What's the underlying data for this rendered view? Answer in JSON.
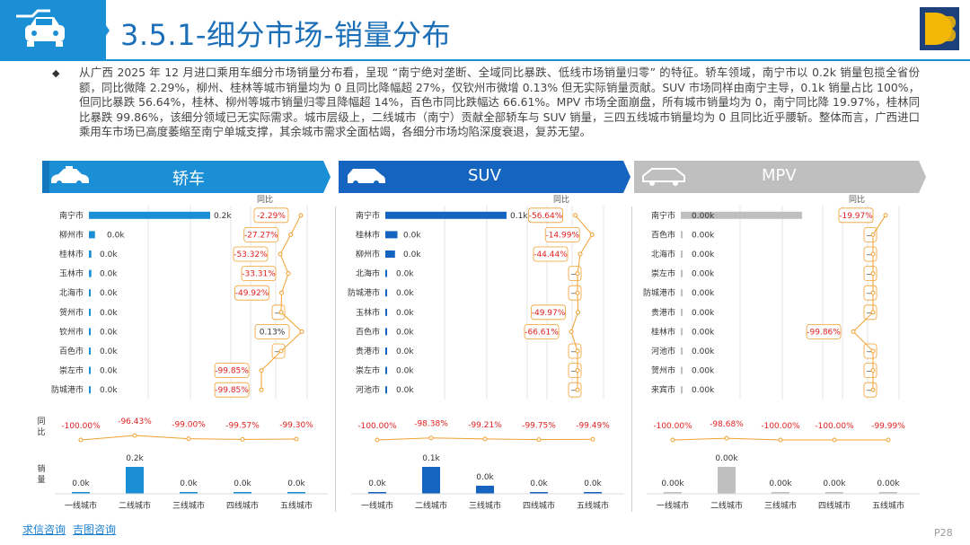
{
  "header": {
    "title": "3.5.1-细分市场-销量分布",
    "car_icon": "car-icon",
    "logo_icon": "brand-logo-icon",
    "accent": "#1a8fd6"
  },
  "intro": {
    "bullet": "◆",
    "text": "从广西 2025 年 12 月进口乘用车细分市场销量分布看，呈现 “南宁绝对垄断、全域同比暴跌、低线市场销量归零” 的特征。轿车领域，南宁市以 0.2k 销量包揽全省份额，同比微降 2.29%，柳州、桂林等城市销量均为 0 且同比降幅超 27%，仅钦州市微增 0.13% 但无实际销量贡献。SUV 市场同样由南宁主导，0.1k 销量占比 100%，但同比暴跌 56.64%，桂林、柳州等城市销量归零且降幅超 14%，百色市同比跌幅达 66.61%。MPV 市场全面崩盘，所有城市销量均为 0，南宁同比降 19.97%，桂林同比暴跌 99.86%，该细分领域已无实际需求。城市层级上，二线城市（南宁）贡献全部轿车与 SUV 销量，三四五线城市销量均为 0 且同比近乎腰斩。整体而言，广西进口乘用车市场已高度萎缩至南宁单城支撑，其余城市需求全面枯竭，各细分市场均陷深度衰退，复苏无望。"
  },
  "footer": {
    "links": [
      "求信咨询",
      "吉图咨询"
    ],
    "page": "P28"
  },
  "labels": {
    "yoy_header": "同比",
    "side_yoy": "同比",
    "side_sales": "销量"
  },
  "chart_data": [
    {
      "type": "bar",
      "segment": "轿车",
      "color": "#1a8fd6",
      "header_color": "#1a8fd6",
      "cities": [
        "南宁市",
        "柳州市",
        "桂林市",
        "玉林市",
        "北海市",
        "贺州市",
        "钦州市",
        "百色市",
        "崇左市",
        "防城港市"
      ],
      "sales_labels": [
        "0.2k",
        "0.0k",
        "0.0k",
        "0.0k",
        "0.0k",
        "0.0k",
        "0.0k",
        "0.0k",
        "0.0k",
        "0.0k"
      ],
      "sales": [
        0.2,
        0.01,
        0.004,
        0.004,
        0,
        0,
        0,
        0,
        0,
        0
      ],
      "yoy_labels": [
        "-2.29%",
        "-27.27%",
        "-53.32%",
        "-33.31%",
        "-49.92%",
        "—",
        "0.13%",
        "—",
        "-99.85%",
        "-99.85%"
      ],
      "yoy": [
        -2.29,
        -27.27,
        -53.32,
        -33.31,
        -49.92,
        null,
        0.13,
        null,
        -99.85,
        -99.85
      ],
      "tiers": [
        "一线城市",
        "二线城市",
        "三线城市",
        "四线城市",
        "五线城市"
      ],
      "tier_yoy_labels": [
        "-100.00%",
        "-96.43%",
        "-99.00%",
        "-99.57%",
        "-99.30%"
      ],
      "tier_yoy": [
        -100.0,
        -96.43,
        -99.0,
        -99.57,
        -99.3
      ],
      "tier_sales_labels": [
        "0.0k",
        "0.2k",
        "0.0k",
        "0.0k",
        "0.0k"
      ],
      "tier_sales": [
        0,
        0.2,
        0.01,
        0.002,
        0.002
      ]
    },
    {
      "type": "bar",
      "segment": "SUV",
      "color": "#1565c0",
      "header_color": "#1565c0",
      "cities": [
        "南宁市",
        "桂林市",
        "柳州市",
        "北海市",
        "防城港市",
        "玉林市",
        "百色市",
        "贵港市",
        "崇左市",
        "河池市"
      ],
      "sales_labels": [
        "0.1k",
        "0.0k",
        "0.0k",
        "0.0k",
        "0.0k",
        "0.0k",
        "0.0k",
        "0.0k",
        "0.0k",
        "0.0k"
      ],
      "sales": [
        0.1,
        0.01,
        0.008,
        0,
        0,
        0,
        0,
        0,
        0,
        0
      ],
      "yoy_labels": [
        "-56.64%",
        "-14.99%",
        "-44.44%",
        "—",
        "—",
        "-49.97%",
        "-66.61%",
        "—",
        "—",
        "—"
      ],
      "yoy": [
        -56.64,
        -14.99,
        -44.44,
        null,
        null,
        -49.97,
        -66.61,
        null,
        null,
        null
      ],
      "tiers": [
        "一线城市",
        "二线城市",
        "三线城市",
        "四线城市",
        "五线城市"
      ],
      "tier_yoy_labels": [
        "-100.00%",
        "-98.38%",
        "-99.21%",
        "-99.75%",
        "-99.49%"
      ],
      "tier_yoy": [
        -100.0,
        -98.38,
        -99.21,
        -99.75,
        -99.49
      ],
      "tier_sales_labels": [
        "0.0k",
        "0.1k",
        "0.0k",
        "0.0k",
        "0.0k"
      ],
      "tier_sales": [
        0,
        0.1,
        0.03,
        0.003,
        0.002
      ]
    },
    {
      "type": "bar",
      "segment": "MPV",
      "color": "#bfbfbf",
      "header_color": "#bfbfbf",
      "cities": [
        "南宁市",
        "百色市",
        "北海市",
        "崇左市",
        "防城港市",
        "贵港市",
        "桂林市",
        "河池市",
        "贺州市",
        "来宾市"
      ],
      "sales_labels": [
        "0.00k",
        "0.00k",
        "0.00k",
        "0.00k",
        "0.00k",
        "0.00k",
        "0.00k",
        "0.00k",
        "0.00k",
        "0.00k"
      ],
      "sales": [
        0.004,
        0,
        0,
        0,
        0,
        0,
        0,
        0,
        0,
        0
      ],
      "yoy_labels": [
        "-19.97%",
        "—",
        "—",
        "—",
        "—",
        "—",
        "-99.86%",
        "—",
        "—",
        "—"
      ],
      "yoy": [
        -19.97,
        null,
        null,
        null,
        null,
        null,
        -99.86,
        null,
        null,
        null
      ],
      "tiers": [
        "一线城市",
        "二线城市",
        "三线城市",
        "四线城市",
        "五线城市"
      ],
      "tier_yoy_labels": [
        "-100.00%",
        "-98.68%",
        "-100.00%",
        "-100.00%",
        "-99.99%"
      ],
      "tier_yoy": [
        -100.0,
        -98.68,
        -100.0,
        -100.0,
        -99.99
      ],
      "tier_sales_labels": [
        "0.00k",
        "0.00k",
        "0.00k",
        "0.00k",
        "0.00k"
      ],
      "tier_sales": [
        0,
        0.004,
        0.0001,
        0.0001,
        0.0001
      ]
    }
  ]
}
